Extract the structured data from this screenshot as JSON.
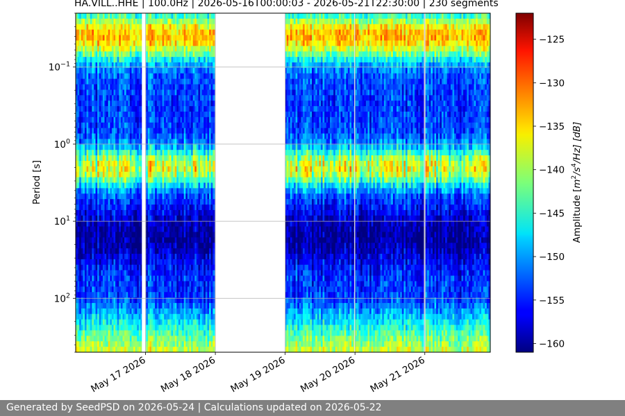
{
  "chart_data": {
    "type": "heatmap",
    "title": "HA.VILL..HHE | 100.0Hz | 2026-05-16T00:00:03 - 2026-05-21T22:30:00 | 230 segments",
    "ylabel": "Period [s]",
    "y_scale": "log",
    "y_inverted": true,
    "ylim": [
      500,
      0.02
    ],
    "y_ticks": [
      {
        "value": 0.1,
        "base": "10",
        "exp": "−1"
      },
      {
        "value": 1,
        "base": "10",
        "exp": "0"
      },
      {
        "value": 10,
        "base": "10",
        "exp": "1"
      },
      {
        "value": 100,
        "base": "10",
        "exp": "2"
      }
    ],
    "grid": true,
    "x_ticks": [
      "May 17 2026",
      "May 18 2026",
      "May 19 2026",
      "May 20 2026",
      "May 21 2026"
    ],
    "x_range": [
      "2026-05-16T00:00:03",
      "2026-05-21T22:30:00"
    ],
    "segments": 230,
    "data_gaps": [
      [
        "2026-05-16T22:45:00",
        "2026-05-17T00:00:00"
      ],
      [
        "2026-05-18T00:00:00",
        "2026-05-19T00:00:00"
      ],
      [
        "2026-05-19T23:45:00",
        "2026-05-20T00:00:00"
      ],
      [
        "2026-05-20T23:45:00",
        "2026-05-21T00:00:00"
      ]
    ],
    "colorbar": {
      "label_prefix": "Amplitude [",
      "label_m": "m",
      "label_m_exp": "2",
      "label_mid": "/s",
      "label_s_exp": "4",
      "label_suffix": "/Hz] [dB]",
      "min": -161,
      "max": -122,
      "ticks": [
        "−125",
        "−130",
        "−135",
        "−140",
        "−145",
        "−150",
        "−155",
        "−160"
      ],
      "tick_values": [
        -125,
        -130,
        -135,
        -140,
        -145,
        -150,
        -155,
        -160
      ],
      "colormap": "jet"
    }
  },
  "footer": {
    "text": "Generated by SeedPSD on 2026-05-24 | Calculations updated on 2026-05-22",
    "background": "#808080"
  }
}
